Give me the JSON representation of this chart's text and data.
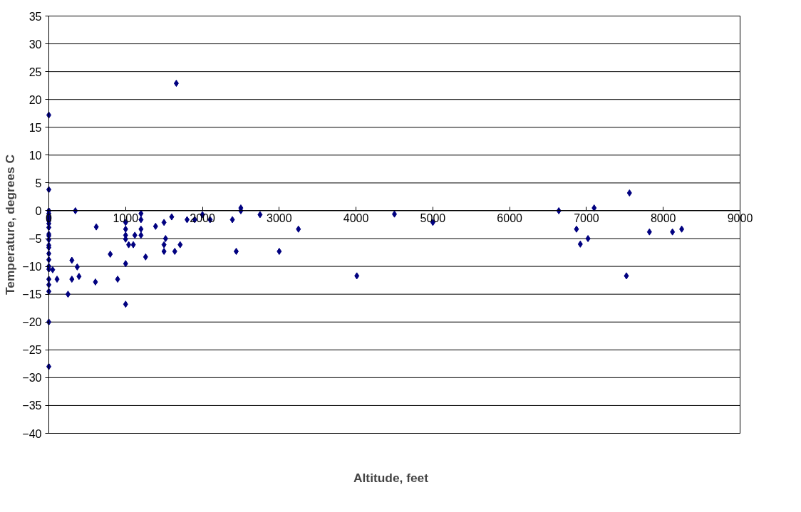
{
  "chart_data": {
    "type": "scatter",
    "xlabel": "Altitude, feet",
    "ylabel": "Temperature, degrees C",
    "xlim": [
      0,
      9000
    ],
    "xticks": [
      0,
      1000,
      2000,
      3000,
      4000,
      5000,
      6000,
      7000,
      8000,
      9000
    ],
    "ylim": [
      -40,
      35
    ],
    "yticks": [
      -40,
      -35,
      -30,
      -25,
      -20,
      -15,
      -10,
      -5,
      0,
      5,
      10,
      15,
      20,
      25,
      30,
      35
    ],
    "grid": "y",
    "marker": "diamond",
    "series": [
      {
        "color": "#000080",
        "x": [
          0,
          0,
          0,
          0,
          0,
          0,
          0,
          0,
          0,
          0,
          0,
          0,
          0,
          0,
          0,
          0,
          0,
          0,
          0,
          0,
          0,
          0,
          0,
          50,
          107,
          250,
          300,
          300,
          346,
          370,
          393,
          607,
          618,
          800,
          896,
          1000,
          1000,
          1000,
          1000,
          1000,
          1000,
          1040,
          1100,
          1120,
          1200,
          1200,
          1200,
          1200,
          1260,
          1390,
          1500,
          1520,
          1500,
          1500,
          1600,
          1640,
          1660,
          1710,
          1800,
          1900,
          2000,
          2100,
          2390,
          2440,
          2500,
          2500,
          2750,
          3000,
          3250,
          4010,
          4500,
          5000,
          6640,
          6870,
          6920,
          7020,
          7100,
          7520,
          7560,
          7820,
          8120,
          8240
        ],
        "values": [
          0,
          -0.5,
          -1,
          -1.3,
          -1.8,
          -2.3,
          -3,
          -4.2,
          -4.5,
          -5.2,
          -6.2,
          -6.6,
          -7.7,
          -8.8,
          -10,
          -10.5,
          -12.3,
          -13.3,
          -14.5,
          -20,
          17.2,
          3.8,
          -28,
          -10.6,
          -12.3,
          -15,
          -8.9,
          -12.3,
          0,
          -10.1,
          -11.8,
          -12.8,
          -2.9,
          -7.8,
          -12.3,
          -2.1,
          -3.3,
          -4.4,
          -5.1,
          -9.5,
          -16.8,
          -6.1,
          -6.1,
          -4.4,
          -0.5,
          -1.6,
          -3.3,
          -4.4,
          -8.3,
          -2.8,
          -2.1,
          -5,
          -6.1,
          -7.3,
          -1.1,
          -7.3,
          22.9,
          -6.1,
          -1.6,
          -1.6,
          -0.7,
          -1.6,
          -1.6,
          -7.3,
          0.5,
          0,
          -0.7,
          -7.3,
          -3.3,
          -11.7,
          -0.6,
          -2.1,
          0,
          -3.3,
          -6,
          -5,
          0.5,
          -11.7,
          3.2,
          -3.8,
          -3.8,
          -3.3
        ]
      }
    ]
  }
}
